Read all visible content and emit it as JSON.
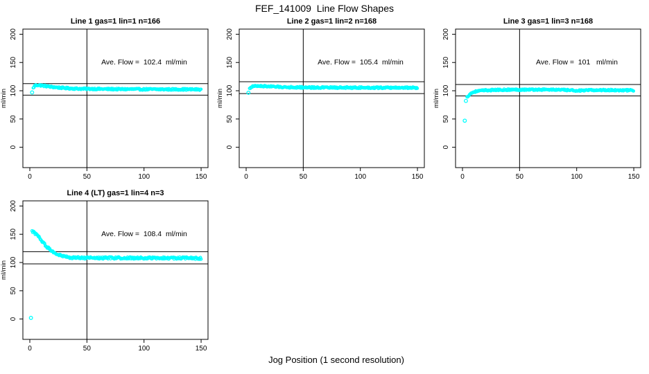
{
  "chart_data": {
    "type": "scatter",
    "title": "FEF_141009  Line Flow Shapes",
    "xlabel": "Jog Position (1 second resolution)",
    "ylabel": "ml/min",
    "point_color": "#00ffff",
    "axis_color": "#000000",
    "xlim": [
      -6,
      156
    ],
    "ylim": [
      -36,
      210
    ],
    "xticks": [
      0,
      50,
      100,
      150
    ],
    "yticks": [
      0,
      50,
      100,
      150,
      200
    ],
    "vline_x": 50,
    "legend": "none",
    "grid": "off",
    "panels": [
      {
        "title": "Line 1 gas=1 lin=1 n=166",
        "annotation": "Ave. Flow =  102.4  ml/min",
        "ave_flow": 102.4,
        "n": 166,
        "hlines": [
          112.6,
          92.2
        ],
        "band_halfwidth": 1.4,
        "row": 0,
        "col": 0,
        "profile": [
          [
            3,
            104.5
          ],
          [
            4,
            108
          ],
          [
            5,
            109.5
          ],
          [
            6,
            110
          ],
          [
            8,
            109.8
          ],
          [
            10,
            109.4
          ],
          [
            13,
            108.5
          ],
          [
            16,
            107.6
          ],
          [
            20,
            106.6
          ],
          [
            24,
            105.8
          ],
          [
            28,
            105.1
          ],
          [
            32,
            104.6
          ],
          [
            36,
            104.1
          ],
          [
            40,
            103.8
          ],
          [
            45,
            103.5
          ],
          [
            50,
            103.3
          ],
          [
            55,
            103.4
          ],
          [
            60,
            103.1
          ],
          [
            70,
            102.9
          ],
          [
            80,
            102.7
          ],
          [
            90,
            102.8
          ],
          [
            100,
            102.5
          ],
          [
            110,
            102.6
          ],
          [
            120,
            102.4
          ],
          [
            130,
            102.5
          ],
          [
            140,
            102.3
          ],
          [
            150,
            102.2
          ]
        ],
        "outliers": [
          [
            2,
            97
          ]
        ]
      },
      {
        "title": "Line 2 gas=1 lin=2 n=168",
        "annotation": "Ave. Flow =  105.4  ml/min",
        "ave_flow": 105.4,
        "n": 168,
        "hlines": [
          115.9,
          94.9
        ],
        "band_halfwidth": 1.4,
        "row": 0,
        "col": 1,
        "profile": [
          [
            3,
            103.5
          ],
          [
            4,
            106
          ],
          [
            5,
            107.3
          ],
          [
            7,
            108
          ],
          [
            10,
            108.3
          ],
          [
            14,
            108.2
          ],
          [
            18,
            107.8
          ],
          [
            22,
            107.4
          ],
          [
            26,
            107
          ],
          [
            30,
            106.7
          ],
          [
            36,
            106.3
          ],
          [
            42,
            106.1
          ],
          [
            50,
            105.9
          ],
          [
            60,
            105.7
          ],
          [
            70,
            105.6
          ],
          [
            85,
            105.5
          ],
          [
            100,
            105.5
          ],
          [
            115,
            105.4
          ],
          [
            130,
            105.4
          ],
          [
            150,
            105.3
          ]
        ],
        "outliers": [
          [
            2,
            96.5
          ]
        ]
      },
      {
        "title": "Line 3 gas=1 lin=3 n=168",
        "annotation": "Ave. Flow =  101   ml/min",
        "ave_flow": 101,
        "n": 168,
        "hlines": [
          111.1,
          90.9
        ],
        "band_halfwidth": 1.3,
        "row": 0,
        "col": 2,
        "profile": [
          [
            4,
            88.5
          ],
          [
            5,
            91
          ],
          [
            6,
            93
          ],
          [
            7,
            94.8
          ],
          [
            8,
            96
          ],
          [
            10,
            97.8
          ],
          [
            12,
            98.9
          ],
          [
            15,
            99.8
          ],
          [
            18,
            100.4
          ],
          [
            22,
            100.9
          ],
          [
            26,
            101.2
          ],
          [
            30,
            101.4
          ],
          [
            36,
            101.7
          ],
          [
            42,
            101.8
          ],
          [
            50,
            101.9
          ],
          [
            60,
            102
          ],
          [
            70,
            102
          ],
          [
            80,
            101.9
          ],
          [
            90,
            101.3
          ],
          [
            97,
            100.5
          ],
          [
            105,
            100.3
          ],
          [
            112,
            100.9
          ],
          [
            120,
            101.2
          ],
          [
            130,
            101.1
          ],
          [
            140,
            100.9
          ],
          [
            150,
            100.7
          ]
        ],
        "outliers": [
          [
            2,
            47
          ],
          [
            3,
            82
          ]
        ]
      },
      {
        "title": "Line 4 (LT) gas=1 lin=4 n=3",
        "annotation": "Ave. Flow =  108.4  ml/min",
        "ave_flow": 108.4,
        "n": 3,
        "hlines": [
          119.2,
          97.6
        ],
        "band_halfwidth": 1.8,
        "row": 1,
        "col": 0,
        "profile": [
          [
            2,
            155
          ],
          [
            3,
            154
          ],
          [
            4,
            152.5
          ],
          [
            5,
            151
          ],
          [
            6,
            149
          ],
          [
            7,
            147
          ],
          [
            8,
            144.5
          ],
          [
            9,
            142
          ],
          [
            10,
            139.5
          ],
          [
            11,
            137
          ],
          [
            12,
            134.5
          ],
          [
            13,
            132
          ],
          [
            14,
            129.8
          ],
          [
            15,
            127.7
          ],
          [
            16,
            125.8
          ],
          [
            17,
            124
          ],
          [
            18,
            122.3
          ],
          [
            19,
            120.8
          ],
          [
            20,
            119.4
          ],
          [
            21,
            118.1
          ],
          [
            22,
            116.9
          ],
          [
            23,
            115.8
          ],
          [
            24,
            114.8
          ],
          [
            25,
            113.9
          ],
          [
            26,
            113.1
          ],
          [
            27,
            112.4
          ],
          [
            28,
            111.7
          ],
          [
            29,
            111.1
          ],
          [
            30,
            110.6
          ],
          [
            32,
            109.8
          ],
          [
            34,
            109.3
          ],
          [
            36,
            108.9
          ],
          [
            38,
            108.6
          ],
          [
            40,
            108.4
          ],
          [
            44,
            108.2
          ],
          [
            48,
            108.1
          ],
          [
            55,
            108
          ],
          [
            65,
            108
          ],
          [
            80,
            108.1
          ],
          [
            95,
            108
          ],
          [
            110,
            107.9
          ],
          [
            120,
            107.8
          ],
          [
            130,
            108
          ],
          [
            140,
            107.9
          ],
          [
            150,
            107.2
          ]
        ],
        "outliers": [
          [
            1,
            2
          ]
        ]
      }
    ]
  }
}
